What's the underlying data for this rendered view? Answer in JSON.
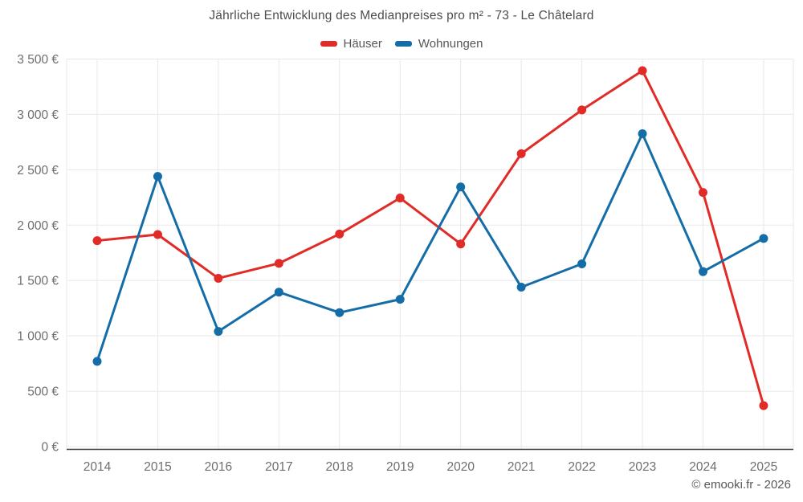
{
  "header": {
    "title": "Jährliche Entwicklung des Medianpreises pro m² - 73 - Le Châtelard"
  },
  "footer": {
    "credit": "© emooki.fr - 2026"
  },
  "colors": {
    "haeuser": "#e02b27",
    "wohnungen": "#146da6",
    "grid": "#e8e8e8",
    "axis_line": "#3f3f3f",
    "tick_text": "#6e6e6e",
    "title_text": "#4c4c4c"
  },
  "chart_data": {
    "type": "line",
    "title": "Jährliche Entwicklung des Medianpreises pro m² - 73 - Le Châtelard",
    "categories": [
      "2014",
      "2015",
      "2016",
      "2017",
      "2018",
      "2019",
      "2020",
      "2021",
      "2022",
      "2023",
      "2024",
      "2025"
    ],
    "series": [
      {
        "name": "Häuser",
        "color": "#e02b27",
        "values": [
          1860,
          1915,
          1520,
          1655,
          1920,
          2245,
          1830,
          2645,
          3040,
          3395,
          2295,
          370
        ]
      },
      {
        "name": "Wohnungen",
        "color": "#146da6",
        "values": [
          770,
          2440,
          1040,
          1395,
          1210,
          1330,
          2345,
          1440,
          1650,
          2825,
          1580,
          1880
        ]
      }
    ],
    "xlabel": "",
    "ylabel": "",
    "ylim": [
      0,
      3500
    ],
    "ytick_step": 500,
    "yticks": [
      {
        "value": 0,
        "label": "0 €"
      },
      {
        "value": 500,
        "label": "500 €"
      },
      {
        "value": 1000,
        "label": "1 000 €"
      },
      {
        "value": 1500,
        "label": "1 500 €"
      },
      {
        "value": 2000,
        "label": "2 000 €"
      },
      {
        "value": 2500,
        "label": "2 500 €"
      },
      {
        "value": 3000,
        "label": "3 000 €"
      },
      {
        "value": 3500,
        "label": "3 500 €"
      }
    ],
    "grid": true,
    "legend_position": "top"
  }
}
